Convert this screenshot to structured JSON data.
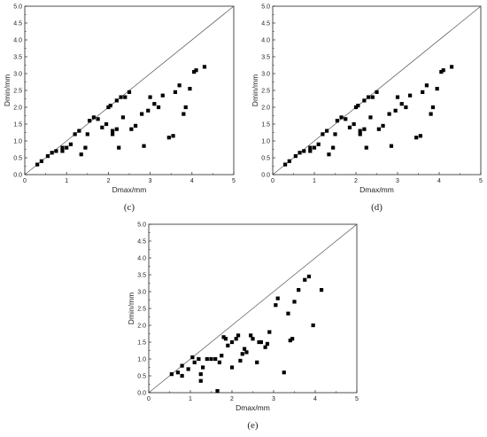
{
  "chart_data": [
    {
      "type": "scatter",
      "panel_label": "(c)",
      "xlabel": "Dmax/mm",
      "ylabel": "Dmin/mm",
      "xlim": [
        0,
        5
      ],
      "ylim": [
        0,
        5.0
      ],
      "x_ticks": [
        "0",
        "1",
        "2",
        "3",
        "4",
        "5"
      ],
      "y_ticks": [
        "0.0",
        "0.5",
        "1.0",
        "1.5",
        "2.0",
        "2.5",
        "3.0",
        "3.5",
        "4.0",
        "4.5",
        "5.0"
      ],
      "grid": false,
      "reference_line": "y = x",
      "marker_color": "#000000",
      "points": [
        [
          0.3,
          0.3
        ],
        [
          0.4,
          0.4
        ],
        [
          0.55,
          0.55
        ],
        [
          0.65,
          0.65
        ],
        [
          0.75,
          0.7
        ],
        [
          0.9,
          0.7
        ],
        [
          0.9,
          0.8
        ],
        [
          1.0,
          0.8
        ],
        [
          1.1,
          0.9
        ],
        [
          1.2,
          1.2
        ],
        [
          1.3,
          1.3
        ],
        [
          1.35,
          0.6
        ],
        [
          1.45,
          0.8
        ],
        [
          1.5,
          1.2
        ],
        [
          1.55,
          1.6
        ],
        [
          1.65,
          1.7
        ],
        [
          1.75,
          1.65
        ],
        [
          1.85,
          1.4
        ],
        [
          1.95,
          1.5
        ],
        [
          2.0,
          2.0
        ],
        [
          2.05,
          2.05
        ],
        [
          2.1,
          1.2
        ],
        [
          2.1,
          1.3
        ],
        [
          2.2,
          1.35
        ],
        [
          2.25,
          0.8
        ],
        [
          2.2,
          2.2
        ],
        [
          2.3,
          2.3
        ],
        [
          2.35,
          1.7
        ],
        [
          2.4,
          2.3
        ],
        [
          2.5,
          2.45
        ],
        [
          2.55,
          1.35
        ],
        [
          2.65,
          1.45
        ],
        [
          2.8,
          1.8
        ],
        [
          2.85,
          0.85
        ],
        [
          2.95,
          1.9
        ],
        [
          3.0,
          2.3
        ],
        [
          3.1,
          2.1
        ],
        [
          3.2,
          2.0
        ],
        [
          3.3,
          2.35
        ],
        [
          3.45,
          1.1
        ],
        [
          3.55,
          1.15
        ],
        [
          3.6,
          2.45
        ],
        [
          3.7,
          2.65
        ],
        [
          3.8,
          1.8
        ],
        [
          3.85,
          2.0
        ],
        [
          3.95,
          2.55
        ],
        [
          4.05,
          3.05
        ],
        [
          4.1,
          3.1
        ],
        [
          4.3,
          3.2
        ]
      ]
    },
    {
      "type": "scatter",
      "panel_label": "(d)",
      "xlabel": "Dmax/mm",
      "ylabel": "Dmin/mm",
      "xlim": [
        0,
        5
      ],
      "ylim": [
        0,
        5.0
      ],
      "x_ticks": [
        "0",
        "1",
        "2",
        "3",
        "4",
        "5"
      ],
      "y_ticks": [
        "0.0",
        "0.5",
        "1.0",
        "1.5",
        "2.0",
        "2.5",
        "3.0",
        "3.5",
        "4.0",
        "4.5",
        "5.0"
      ],
      "grid": false,
      "reference_line": "y = x",
      "marker_color": "#000000",
      "points": [
        [
          0.3,
          0.3
        ],
        [
          0.4,
          0.4
        ],
        [
          0.55,
          0.55
        ],
        [
          0.65,
          0.65
        ],
        [
          0.75,
          0.7
        ],
        [
          0.9,
          0.7
        ],
        [
          0.9,
          0.8
        ],
        [
          1.0,
          0.8
        ],
        [
          1.1,
          0.9
        ],
        [
          1.2,
          1.2
        ],
        [
          1.3,
          1.3
        ],
        [
          1.35,
          0.6
        ],
        [
          1.45,
          0.8
        ],
        [
          1.5,
          1.2
        ],
        [
          1.55,
          1.6
        ],
        [
          1.65,
          1.7
        ],
        [
          1.75,
          1.65
        ],
        [
          1.85,
          1.4
        ],
        [
          1.95,
          1.5
        ],
        [
          2.0,
          2.0
        ],
        [
          2.05,
          2.05
        ],
        [
          2.1,
          1.2
        ],
        [
          2.1,
          1.3
        ],
        [
          2.2,
          1.35
        ],
        [
          2.25,
          0.8
        ],
        [
          2.2,
          2.2
        ],
        [
          2.3,
          2.3
        ],
        [
          2.35,
          1.7
        ],
        [
          2.4,
          2.3
        ],
        [
          2.5,
          2.45
        ],
        [
          2.55,
          1.35
        ],
        [
          2.65,
          1.45
        ],
        [
          2.8,
          1.8
        ],
        [
          2.85,
          0.85
        ],
        [
          2.95,
          1.9
        ],
        [
          3.0,
          2.3
        ],
        [
          3.1,
          2.1
        ],
        [
          3.2,
          2.0
        ],
        [
          3.3,
          2.35
        ],
        [
          3.45,
          1.1
        ],
        [
          3.55,
          1.15
        ],
        [
          3.6,
          2.45
        ],
        [
          3.7,
          2.65
        ],
        [
          3.8,
          1.8
        ],
        [
          3.85,
          2.0
        ],
        [
          3.95,
          2.55
        ],
        [
          4.05,
          3.05
        ],
        [
          4.1,
          3.1
        ],
        [
          4.3,
          3.2
        ]
      ]
    },
    {
      "type": "scatter",
      "panel_label": "(e)",
      "xlabel": "Dmax/mm",
      "ylabel": "Dmin/mm",
      "xlim": [
        0,
        5
      ],
      "ylim": [
        0,
        5.0
      ],
      "x_ticks": [
        "0",
        "1",
        "2",
        "3",
        "4",
        "5"
      ],
      "y_ticks": [
        "0.0",
        "0.5",
        "1.0",
        "1.5",
        "2.0",
        "2.5",
        "3.0",
        "3.5",
        "4.0",
        "4.5",
        "5.0"
      ],
      "grid": false,
      "reference_line": "y = x",
      "marker_color": "#000000",
      "points": [
        [
          0.55,
          0.55
        ],
        [
          0.7,
          0.6
        ],
        [
          0.8,
          0.5
        ],
        [
          0.8,
          0.8
        ],
        [
          0.95,
          0.7
        ],
        [
          1.05,
          1.05
        ],
        [
          1.1,
          0.9
        ],
        [
          1.2,
          1.0
        ],
        [
          1.25,
          0.55
        ],
        [
          1.25,
          0.35
        ],
        [
          1.3,
          0.75
        ],
        [
          1.4,
          1.0
        ],
        [
          1.5,
          1.0
        ],
        [
          1.6,
          1.0
        ],
        [
          1.65,
          0.05
        ],
        [
          1.7,
          0.9
        ],
        [
          1.75,
          1.1
        ],
        [
          1.8,
          1.65
        ],
        [
          1.85,
          1.6
        ],
        [
          1.9,
          1.4
        ],
        [
          2.0,
          0.75
        ],
        [
          2.0,
          1.5
        ],
        [
          2.1,
          1.6
        ],
        [
          2.15,
          1.7
        ],
        [
          2.2,
          0.95
        ],
        [
          2.25,
          1.15
        ],
        [
          2.3,
          1.3
        ],
        [
          2.35,
          1.2
        ],
        [
          2.45,
          1.7
        ],
        [
          2.5,
          1.6
        ],
        [
          2.6,
          0.9
        ],
        [
          2.65,
          1.5
        ],
        [
          2.7,
          1.5
        ],
        [
          2.8,
          1.35
        ],
        [
          2.85,
          1.45
        ],
        [
          2.9,
          1.8
        ],
        [
          3.05,
          2.6
        ],
        [
          3.1,
          2.8
        ],
        [
          3.25,
          0.6
        ],
        [
          3.35,
          2.35
        ],
        [
          3.4,
          1.55
        ],
        [
          3.45,
          1.6
        ],
        [
          3.5,
          2.7
        ],
        [
          3.6,
          3.05
        ],
        [
          3.75,
          3.35
        ],
        [
          3.85,
          3.45
        ],
        [
          3.95,
          2.0
        ],
        [
          4.15,
          3.05
        ]
      ]
    }
  ]
}
